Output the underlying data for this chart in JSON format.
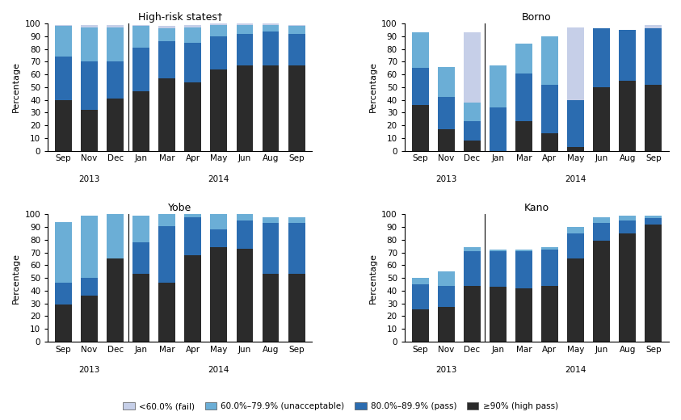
{
  "subplots": [
    {
      "title": "High-risk states†",
      "months": [
        "Sep",
        "Nov",
        "Dec",
        "Jan",
        "Mar",
        "Apr",
        "May",
        "Jun",
        "Aug",
        "Sep"
      ],
      "year_texts": [
        "2013",
        "2014"
      ],
      "year_centers": [
        1.0,
        6.0
      ],
      "data": {
        "ge90": [
          40,
          32,
          41,
          47,
          57,
          54,
          64,
          67,
          67,
          67
        ],
        "80to89": [
          34,
          38,
          29,
          34,
          29,
          31,
          26,
          25,
          27,
          25
        ],
        "60to79": [
          24,
          27,
          27,
          17,
          10,
          12,
          9,
          7,
          5,
          6
        ],
        "lt60": [
          1,
          2,
          2,
          1,
          2,
          2,
          1,
          1,
          1,
          1
        ]
      }
    },
    {
      "title": "Borno",
      "months": [
        "Sep",
        "Nov",
        "Dec",
        "Jan",
        "Mar",
        "Apr",
        "May",
        "Jun",
        "Aug",
        "Sep"
      ],
      "year_texts": [
        "2013",
        "2014"
      ],
      "year_centers": [
        1.0,
        6.0
      ],
      "data": {
        "ge90": [
          36,
          17,
          8,
          0,
          23,
          14,
          3,
          50,
          55,
          52
        ],
        "80to89": [
          29,
          25,
          15,
          34,
          38,
          38,
          37,
          46,
          40,
          44
        ],
        "60to79": [
          28,
          24,
          15,
          33,
          23,
          38,
          0,
          0,
          0,
          0
        ],
        "lt60": [
          0,
          0,
          55,
          0,
          0,
          0,
          57,
          0,
          0,
          3
        ]
      }
    },
    {
      "title": "Yobe",
      "months": [
        "Sep",
        "Nov",
        "Dec",
        "Jan",
        "Mar",
        "Apr",
        "May",
        "Jun",
        "Aug",
        "Sep"
      ],
      "year_texts": [
        "2013",
        "2014"
      ],
      "year_centers": [
        1.0,
        6.0
      ],
      "data": {
        "ge90": [
          29,
          36,
          65,
          53,
          46,
          68,
          74,
          73,
          53,
          53
        ],
        "80to89": [
          17,
          14,
          0,
          25,
          45,
          30,
          14,
          22,
          40,
          40
        ],
        "60to79": [
          48,
          49,
          35,
          21,
          10,
          2,
          12,
          5,
          5,
          5
        ],
        "lt60": [
          0,
          0,
          0,
          0,
          0,
          0,
          0,
          0,
          0,
          0
        ]
      }
    },
    {
      "title": "Kano",
      "months": [
        "Sep",
        "Nov",
        "Dec",
        "Jan",
        "Mar",
        "Apr",
        "May",
        "Jun",
        "Aug",
        "Sep"
      ],
      "year_texts": [
        "2013",
        "2014"
      ],
      "year_centers": [
        1.0,
        6.0
      ],
      "data": {
        "ge90": [
          25,
          27,
          44,
          43,
          42,
          44,
          65,
          79,
          85,
          92
        ],
        "80to89": [
          20,
          17,
          27,
          28,
          29,
          28,
          20,
          14,
          10,
          5
        ],
        "60to79": [
          5,
          11,
          3,
          1,
          1,
          2,
          5,
          5,
          4,
          2
        ],
        "lt60": [
          0,
          0,
          0,
          0,
          0,
          0,
          0,
          0,
          0,
          0
        ]
      }
    }
  ],
  "colors": {
    "ge90": "#2b2b2b",
    "80to89": "#2b6cb0",
    "60to79": "#6baed6",
    "lt60": "#c6cfe8"
  },
  "legend": [
    {
      "label": "<60.0% (fail)",
      "color": "#c6cfe8"
    },
    {
      "label": "60.0%–79.9% (unacceptable)",
      "color": "#6baed6"
    },
    {
      "label": "80.0%–89.9% (pass)",
      "color": "#2b6cb0"
    },
    {
      "label": "≥90% (high pass)",
      "color": "#2b2b2b"
    }
  ],
  "ylabel": "Percentage",
  "ylim": [
    0,
    100
  ],
  "yticks": [
    0,
    10,
    20,
    30,
    40,
    50,
    60,
    70,
    80,
    90,
    100
  ],
  "figsize": [
    8.43,
    5.2
  ],
  "dpi": 100
}
